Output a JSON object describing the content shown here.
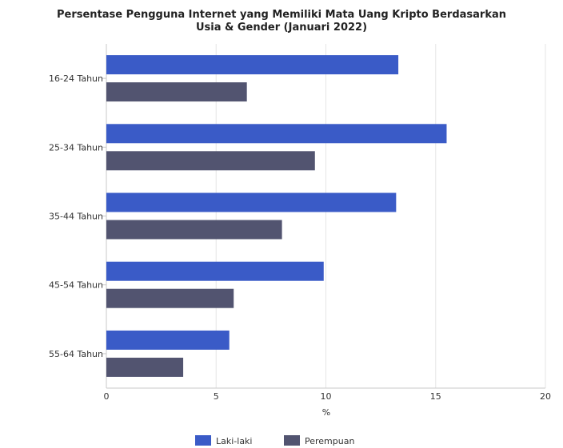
{
  "chart_data": {
    "type": "bar",
    "orientation": "horizontal",
    "title_lines": [
      "Persentase Pengguna Internet yang Memiliki Mata Uang Kripto Berdasarkan",
      "Usia & Gender (Januari 2022)"
    ],
    "categories": [
      "16-24 Tahun",
      "25-34 Tahun",
      "35-44 Tahun",
      "45-54 Tahun",
      "55-64 Tahun"
    ],
    "series": [
      {
        "name": "Laki-laki",
        "color": "#3a5bc7",
        "values": [
          13.3,
          15.5,
          13.2,
          9.9,
          5.6
        ]
      },
      {
        "name": "Perempuan",
        "color": "#525470",
        "values": [
          6.4,
          9.5,
          8.0,
          5.8,
          3.5
        ]
      }
    ],
    "xlabel": "%",
    "xlim": [
      0,
      20
    ],
    "xticks": [
      0,
      5,
      10,
      15,
      20
    ],
    "grid": true,
    "legend_position": "bottom"
  }
}
